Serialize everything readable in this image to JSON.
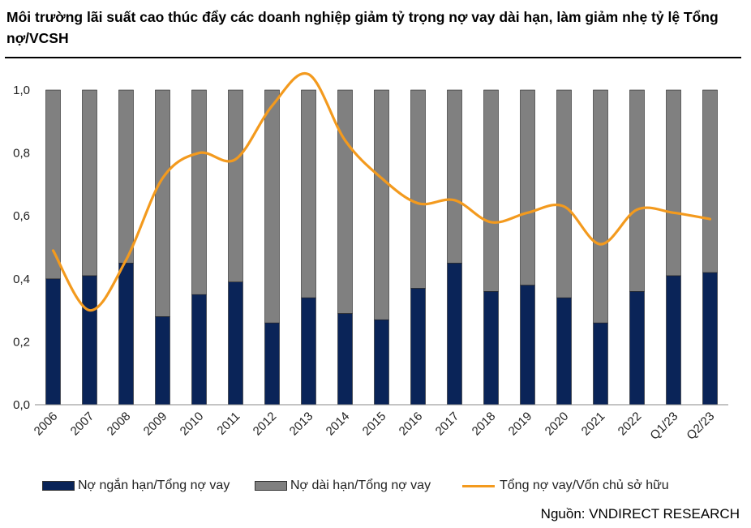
{
  "header": {
    "title": "Môi trường lãi suất cao thúc đẩy các doanh nghiệp giảm tỷ trọng nợ vay dài hạn, làm giảm nhẹ tỷ lệ Tổng nợ/VCSH"
  },
  "source": "Nguồn: VNDIRECT RESEARCH",
  "chart_data": {
    "type": "bar",
    "stacked": true,
    "title": "Môi trường lãi suất cao thúc đẩy các doanh nghiệp giảm tỷ trọng nợ vay dài hạn, làm giảm nhẹ tỷ lệ Tổng nợ/VCSH",
    "categories": [
      "2006",
      "2007",
      "2008",
      "2009",
      "2010",
      "2011",
      "2012",
      "2013",
      "2014",
      "2015",
      "2016",
      "2017",
      "2018",
      "2019",
      "2020",
      "2021",
      "2022",
      "Q1/23",
      "Q2/23"
    ],
    "ylim": [
      0,
      1.0
    ],
    "yticks": [
      "0,0",
      "0,2",
      "0,4",
      "0,6",
      "0,8",
      "1,0"
    ],
    "grid": false,
    "legend_position": "bottom",
    "series": [
      {
        "name": "Nợ ngắn hạn/Tổng nợ vay",
        "type": "bar",
        "color": "#0a2458",
        "values": [
          0.4,
          0.41,
          0.45,
          0.28,
          0.35,
          0.39,
          0.26,
          0.34,
          0.29,
          0.27,
          0.37,
          0.45,
          0.36,
          0.38,
          0.34,
          0.26,
          0.36,
          0.41,
          0.42
        ]
      },
      {
        "name": "Nợ dài hạn/Tổng nợ vay",
        "type": "bar",
        "color": "#808080",
        "values": [
          0.6,
          0.59,
          0.55,
          0.72,
          0.65,
          0.61,
          0.74,
          0.66,
          0.71,
          0.73,
          0.63,
          0.55,
          0.64,
          0.62,
          0.66,
          0.74,
          0.64,
          0.59,
          0.58
        ]
      },
      {
        "name": "Tổng nợ vay/Vốn chủ sở hữu",
        "type": "line",
        "color": "#f39a1e",
        "values": [
          0.49,
          0.3,
          0.46,
          0.72,
          0.8,
          0.78,
          0.95,
          1.05,
          0.84,
          0.72,
          0.64,
          0.65,
          0.58,
          0.61,
          0.63,
          0.51,
          0.62,
          0.61,
          0.59
        ]
      }
    ]
  }
}
